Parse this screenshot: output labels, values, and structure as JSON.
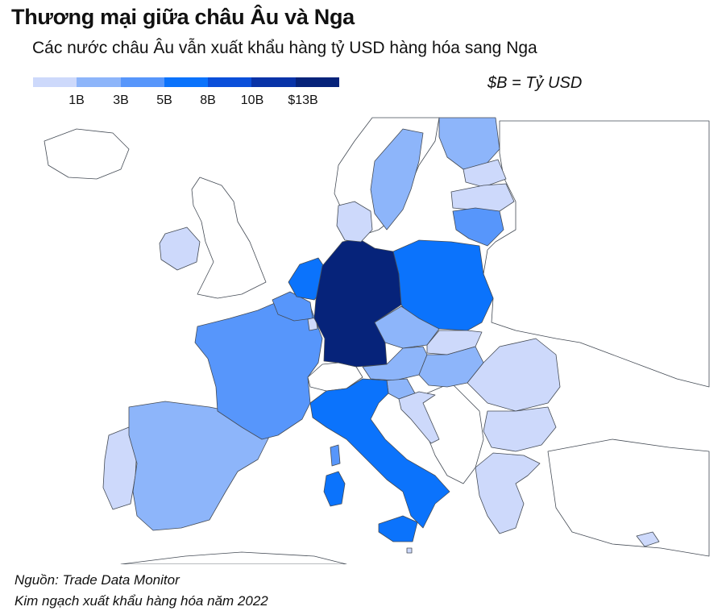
{
  "title": "Thương mại giữa châu Âu và Nga",
  "subtitle": "Các nước châu Âu vẫn xuất khẩu hàng tỷ USD hàng hóa sang Nga",
  "unit_note": "$B = Tỷ USD",
  "legend": {
    "colors": [
      "#cdd9fb",
      "#8db5fa",
      "#5796fb",
      "#0b73fc",
      "#0a4fda",
      "#0833a8",
      "#06237a"
    ],
    "ticks": [
      "1B",
      "3B",
      "5B",
      "8B",
      "10B",
      "$13B"
    ]
  },
  "colors": {
    "no_data": "#ffffff",
    "background": "#ffffff",
    "border": "#444b55"
  },
  "chart_data": {
    "type": "choropleth",
    "scale": "Tỷ USD",
    "bins": [
      "<1B",
      "1B–3B",
      "3B–5B",
      "5B–8B",
      "8B–10B",
      "10B–13B",
      ">$13B"
    ],
    "countries": [
      {
        "id": "germany",
        "bin": 6
      },
      {
        "id": "netherlands",
        "bin": 3
      },
      {
        "id": "belgium",
        "bin": 2
      },
      {
        "id": "france",
        "bin": 2
      },
      {
        "id": "italy",
        "bin": 3
      },
      {
        "id": "poland",
        "bin": 3
      },
      {
        "id": "lithuania",
        "bin": 2
      },
      {
        "id": "spain",
        "bin": 1
      },
      {
        "id": "sweden",
        "bin": 1
      },
      {
        "id": "finland",
        "bin": 1
      },
      {
        "id": "czechia",
        "bin": 1
      },
      {
        "id": "austria",
        "bin": 1
      },
      {
        "id": "hungary",
        "bin": 1
      },
      {
        "id": "slovenia",
        "bin": 1
      },
      {
        "id": "portugal",
        "bin": 0
      },
      {
        "id": "ireland",
        "bin": 0
      },
      {
        "id": "denmark",
        "bin": 0
      },
      {
        "id": "estonia",
        "bin": 0
      },
      {
        "id": "latvia",
        "bin": 0
      },
      {
        "id": "slovakia",
        "bin": 0
      },
      {
        "id": "romania",
        "bin": 0
      },
      {
        "id": "bulgaria",
        "bin": 0
      },
      {
        "id": "greece",
        "bin": 0
      },
      {
        "id": "croatia",
        "bin": 0
      },
      {
        "id": "cyprus",
        "bin": 0
      },
      {
        "id": "luxembourg",
        "bin": 0
      },
      {
        "id": "malta",
        "bin": 0
      }
    ]
  },
  "source": "Nguồn: Trade Data Monitor",
  "note": "Kim ngạch xuất khẩu hàng hóa năm 2022"
}
